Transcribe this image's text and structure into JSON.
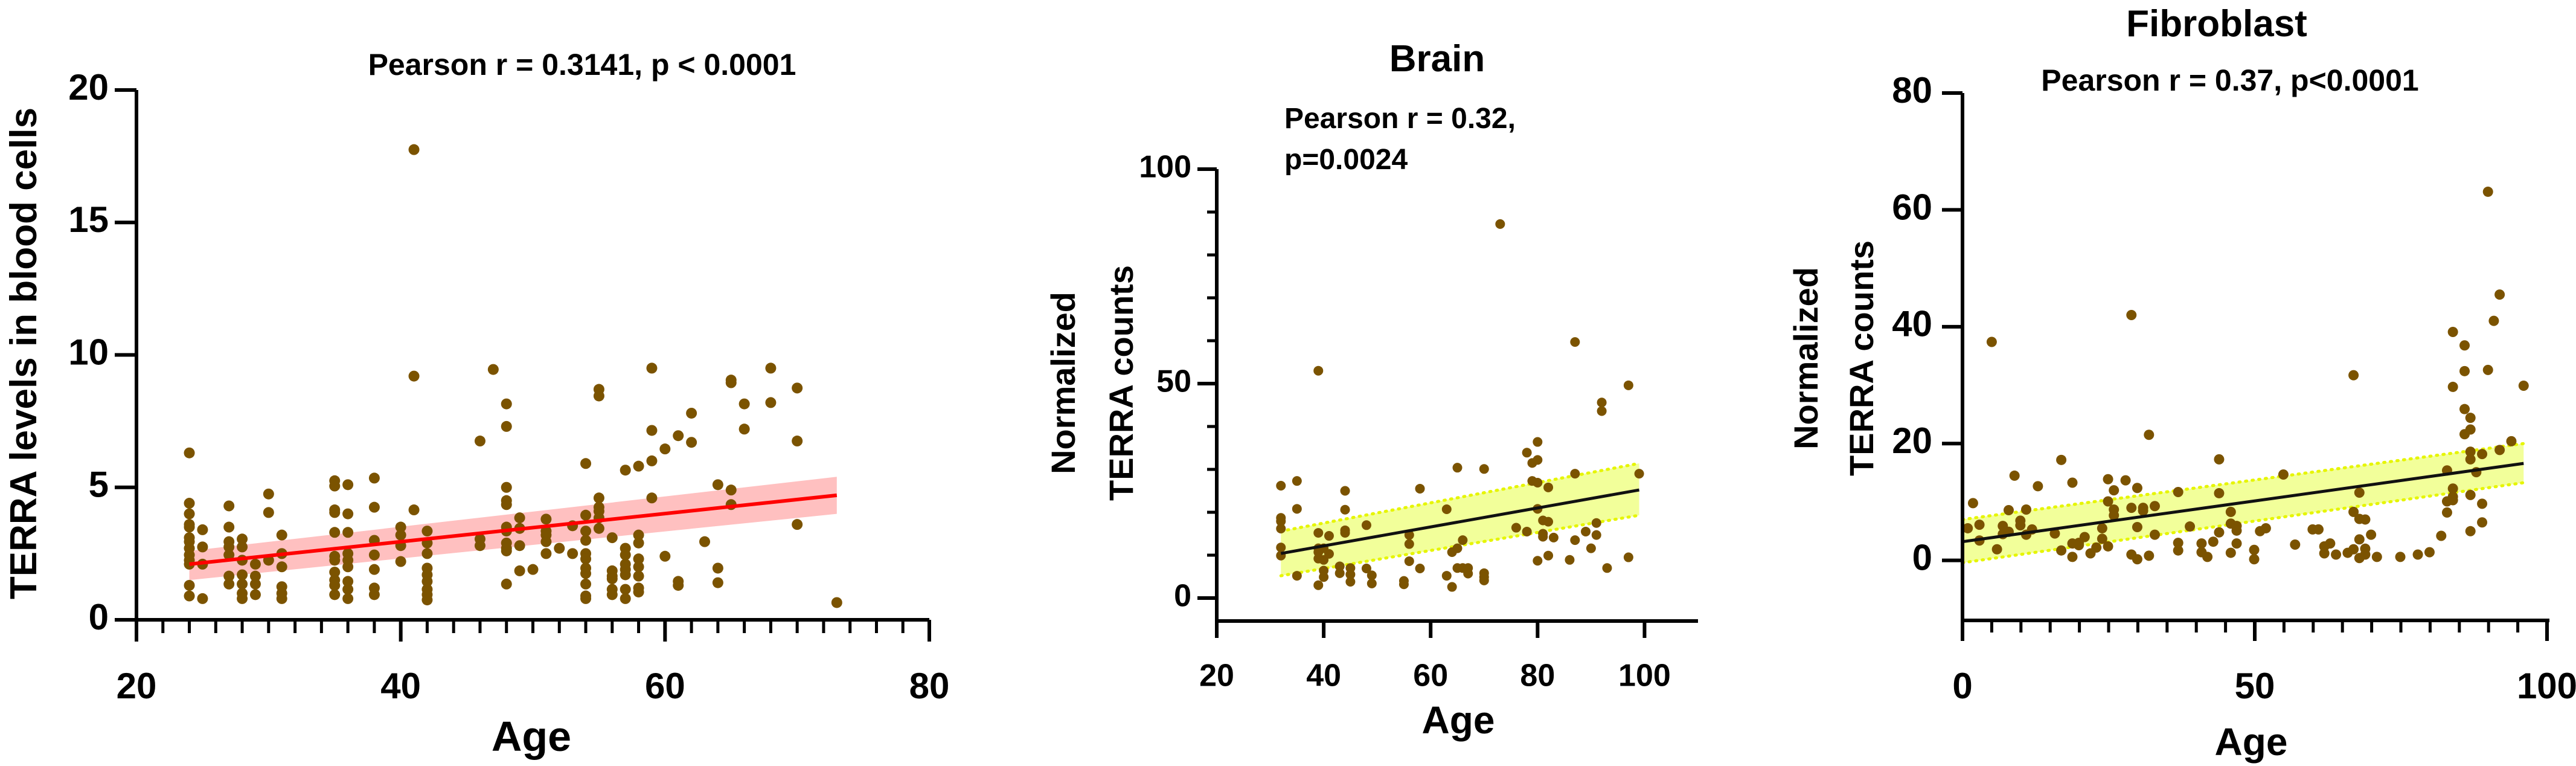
{
  "colors": {
    "point": "#7b5300",
    "axis": "#000000",
    "fit_red": "#ff0000",
    "ci_pink": "#ffc0c0",
    "fit_black": "#111111",
    "ci_yellow": "#f2ff9a",
    "ci_yellow_edge": "#e6f500"
  },
  "chart_data": [
    {
      "type": "scatter",
      "title": "",
      "annotation": [
        "Pearson r = 0.3141, p < 0.0001"
      ],
      "xlabel": "Age",
      "ylabel": [
        "TERRA levels in blood cells"
      ],
      "xlim": [
        20,
        80
      ],
      "ylim": [
        0,
        20
      ],
      "xticks": [
        20,
        40,
        60,
        80
      ],
      "yticks": [
        0,
        5,
        10,
        15,
        20
      ],
      "grid": false,
      "regression": {
        "x": [
          24,
          73
        ],
        "y": [
          2.1,
          4.7
        ],
        "ci_lower": [
          1.5,
          4.0
        ],
        "ci_upper": [
          2.6,
          5.4
        ]
      },
      "points": [
        {
          "x": 24,
          "y": [
            6.3,
            4.4,
            4.0,
            3.6,
            3.5,
            3.1,
            2.95,
            2.7,
            2.45,
            2.25,
            2.1,
            1.3,
            0.9
          ]
        },
        {
          "x": 25,
          "y": [
            3.4,
            2.75,
            2.1,
            0.8
          ]
        },
        {
          "x": 27,
          "y": [
            4.3,
            3.5,
            2.95,
            2.75,
            2.45,
            1.65,
            1.35
          ]
        },
        {
          "x": 28,
          "y": [
            3.05,
            2.75,
            2.25,
            1.7,
            1.35,
            1.0,
            0.8
          ]
        },
        {
          "x": 29,
          "y": [
            2.1,
            1.65,
            1.35,
            0.95
          ]
        },
        {
          "x": 30,
          "y": [
            4.75,
            4.05,
            2.25
          ]
        },
        {
          "x": 31,
          "y": [
            3.2,
            2.5,
            2.0,
            1.25,
            1.0,
            0.8
          ]
        },
        {
          "x": 35,
          "y": [
            5.25,
            5.05,
            4.15,
            4.05,
            3.3,
            2.4,
            2.25,
            1.8,
            1.5,
            1.3,
            0.95
          ]
        },
        {
          "x": 36,
          "y": [
            5.1,
            4.0,
            3.3,
            2.5,
            2.25,
            2.0,
            1.45,
            1.15,
            0.8
          ]
        },
        {
          "x": 38,
          "y": [
            5.35,
            4.25,
            3.0,
            2.45,
            1.9,
            1.2,
            0.95
          ]
        },
        {
          "x": 40,
          "y": [
            3.5,
            3.2,
            2.8,
            2.2
          ]
        },
        {
          "x": 41,
          "y": [
            17.75,
            9.2,
            4.15
          ]
        },
        {
          "x": 42,
          "y": [
            3.35,
            2.9,
            2.5,
            1.95,
            1.7,
            1.45,
            1.15,
            0.95,
            0.75
          ]
        },
        {
          "x": 46,
          "y": [
            6.75,
            3.05,
            2.8
          ]
        },
        {
          "x": 47,
          "y": [
            9.45
          ]
        },
        {
          "x": 48,
          "y": [
            8.15,
            7.3,
            5.0,
            4.5,
            4.35,
            3.5,
            3.35,
            2.9,
            2.7,
            2.6,
            1.35
          ]
        },
        {
          "x": 49,
          "y": [
            3.85,
            3.45,
            2.8,
            1.85
          ]
        },
        {
          "x": 50,
          "y": [
            1.9
          ]
        },
        {
          "x": 51,
          "y": [
            3.8,
            3.35,
            3.2,
            2.95,
            2.5
          ]
        },
        {
          "x": 52,
          "y": [
            2.7
          ]
        },
        {
          "x": 53,
          "y": [
            3.55,
            2.5
          ]
        },
        {
          "x": 54,
          "y": [
            5.9,
            3.95,
            3.35,
            3.0,
            2.5,
            2.3,
            1.95,
            1.75,
            1.35,
            0.9,
            0.8
          ]
        },
        {
          "x": 55,
          "y": [
            8.7,
            8.45,
            4.6,
            4.25,
            4.1,
            3.85,
            3.45
          ]
        },
        {
          "x": 56,
          "y": [
            3.1,
            1.85,
            1.65,
            1.55,
            1.15,
            0.95
          ]
        },
        {
          "x": 57,
          "y": [
            5.65,
            2.7,
            2.45,
            2.1,
            1.9,
            1.7,
            1.15,
            0.8
          ]
        },
        {
          "x": 58,
          "y": [
            5.8,
            3.2,
            2.9,
            2.3,
            2.0,
            1.65,
            1.2,
            1.05
          ]
        },
        {
          "x": 59,
          "y": [
            9.5,
            7.15,
            6.0,
            4.6
          ]
        },
        {
          "x": 60,
          "y": [
            6.45,
            2.4
          ]
        },
        {
          "x": 61,
          "y": [
            6.95,
            1.45,
            1.3
          ]
        },
        {
          "x": 62,
          "y": [
            7.8,
            6.7
          ]
        },
        {
          "x": 63,
          "y": [
            2.95
          ]
        },
        {
          "x": 64,
          "y": [
            5.1,
            1.95,
            1.4
          ]
        },
        {
          "x": 65,
          "y": [
            9.05,
            8.95,
            4.9,
            4.35
          ]
        },
        {
          "x": 66,
          "y": [
            8.15,
            7.2
          ]
        },
        {
          "x": 68,
          "y": [
            9.5,
            8.2
          ]
        },
        {
          "x": 70,
          "y": [
            8.75,
            6.75,
            3.6
          ]
        },
        {
          "x": 73,
          "y": [
            0.65
          ]
        }
      ]
    },
    {
      "type": "scatter",
      "title": "Brain",
      "annotation": [
        "Pearson r = 0.32,",
        "p=0.0024"
      ],
      "xlabel": "Age",
      "ylabel": [
        "Normalized",
        "TERRA counts"
      ],
      "xlim": [
        20,
        110
      ],
      "ylim": [
        -5,
        100
      ],
      "xticks": [
        20,
        40,
        60,
        80,
        100
      ],
      "yticks": [
        0,
        50,
        100
      ],
      "grid": false,
      "regression": {
        "x": [
          32,
          99
        ],
        "y": [
          10.4,
          25.2
        ],
        "ci_lower": [
          5.2,
          19.3
        ],
        "ci_upper": [
          15.6,
          31.4
        ]
      },
      "points": [
        {
          "x": 32,
          "y": [
            26.2,
            18.7,
            17.9,
            16.2,
            11.8,
            9.9
          ]
        },
        {
          "x": 35,
          "y": [
            27.3,
            20.8,
            5.2
          ]
        },
        {
          "x": 39,
          "y": [
            53,
            15.2,
            11.6,
            10.7,
            9.2,
            3.0
          ]
        },
        {
          "x": 40,
          "y": [
            11.6,
            8.9,
            6.4,
            4.9
          ]
        },
        {
          "x": 41,
          "y": [
            14.5,
            10.3
          ]
        },
        {
          "x": 43,
          "y": [
            7.4,
            5.8
          ]
        },
        {
          "x": 44,
          "y": [
            25,
            20.6,
            15.8,
            15.2
          ]
        },
        {
          "x": 45,
          "y": [
            7.0,
            5.5,
            3.8
          ]
        },
        {
          "x": 48,
          "y": [
            17,
            6.9
          ]
        },
        {
          "x": 49,
          "y": [
            5.3,
            3.4
          ]
        },
        {
          "x": 55,
          "y": [
            4.0,
            3.2
          ]
        },
        {
          "x": 56,
          "y": [
            14.7,
            12.6,
            8.6
          ]
        },
        {
          "x": 58,
          "y": [
            25.5,
            6.9
          ]
        },
        {
          "x": 63,
          "y": [
            20.7,
            5.2
          ]
        },
        {
          "x": 64,
          "y": [
            10.7,
            2.6
          ]
        },
        {
          "x": 65,
          "y": [
            30.4,
            11.6,
            7.0
          ]
        },
        {
          "x": 66,
          "y": [
            13.5,
            7.0
          ]
        },
        {
          "x": 67,
          "y": [
            7.0,
            5.7
          ]
        },
        {
          "x": 70,
          "y": [
            30.1,
            5.8,
            4.9,
            4.1
          ]
        },
        {
          "x": 73,
          "y": [
            87.2
          ]
        },
        {
          "x": 76,
          "y": [
            16.4
          ]
        },
        {
          "x": 78,
          "y": [
            33.9,
            15.5
          ]
        },
        {
          "x": 79,
          "y": [
            31.5,
            27.3
          ]
        },
        {
          "x": 80,
          "y": [
            36.4,
            32.2,
            26.9,
            20.8,
            8.7
          ]
        },
        {
          "x": 81,
          "y": [
            18.1,
            15,
            14.3
          ]
        },
        {
          "x": 82,
          "y": [
            25.8,
            17.8,
            9.9
          ]
        },
        {
          "x": 83,
          "y": [
            14.1
          ]
        },
        {
          "x": 86,
          "y": [
            8.9
          ]
        },
        {
          "x": 87,
          "y": [
            59.7,
            29,
            13.5
          ]
        },
        {
          "x": 89,
          "y": [
            15.5
          ]
        },
        {
          "x": 90,
          "y": [
            11.6
          ]
        },
        {
          "x": 91,
          "y": [
            17.5,
            14.7
          ]
        },
        {
          "x": 92,
          "y": [
            45.6,
            43.6
          ]
        },
        {
          "x": 93,
          "y": [
            7.0
          ]
        },
        {
          "x": 97,
          "y": [
            49.6,
            9.5
          ]
        },
        {
          "x": 99,
          "y": [
            29
          ]
        }
      ]
    },
    {
      "type": "scatter",
      "title": "Fibroblast",
      "annotation": [
        "Pearson r = 0.37, p<0.0001"
      ],
      "xlabel": "Age",
      "ylabel": [
        "Normalized",
        "TERRA counts"
      ],
      "xlim": [
        0,
        100
      ],
      "ylim": [
        -5,
        80
      ],
      "xticks": [
        0,
        50,
        100
      ],
      "yticks": [
        0,
        20,
        40,
        60,
        80
      ],
      "grid": false,
      "regression": {
        "x": [
          0,
          96
        ],
        "y": [
          3.2,
          16.6
        ],
        "ci_lower": [
          -0.4,
          13.3
        ],
        "ci_upper": [
          7.0,
          20.0
        ]
      },
      "points": [
        {
          "x": 0.9,
          "y": [
            5.5
          ]
        },
        {
          "x": 1.8,
          "y": [
            9.8
          ]
        },
        {
          "x": 2.9,
          "y": [
            6.1,
            3.4
          ]
        },
        {
          "x": 5,
          "y": [
            37.4
          ]
        },
        {
          "x": 5.9,
          "y": [
            1.9
          ]
        },
        {
          "x": 6.9,
          "y": [
            5.9,
            4.5
          ]
        },
        {
          "x": 7.9,
          "y": [
            8.6,
            4.9
          ]
        },
        {
          "x": 8.9,
          "y": [
            14.5
          ]
        },
        {
          "x": 9.9,
          "y": [
            6.8,
            6.0
          ]
        },
        {
          "x": 10.9,
          "y": [
            8.7,
            4.4
          ]
        },
        {
          "x": 11.9,
          "y": [
            5.3
          ]
        },
        {
          "x": 12.9,
          "y": [
            12.7
          ]
        },
        {
          "x": 15.8,
          "y": [
            4.6
          ]
        },
        {
          "x": 16.9,
          "y": [
            17.2,
            1.7
          ]
        },
        {
          "x": 18.8,
          "y": [
            13.3,
            2.9,
            0.6
          ]
        },
        {
          "x": 19.9,
          "y": [
            3.0,
            2.6
          ]
        },
        {
          "x": 20.9,
          "y": [
            4.0
          ]
        },
        {
          "x": 21.9,
          "y": [
            1.2
          ]
        },
        {
          "x": 22.9,
          "y": [
            2.2
          ]
        },
        {
          "x": 23.9,
          "y": [
            5.5,
            3.7
          ]
        },
        {
          "x": 24.9,
          "y": [
            13.9,
            10.1,
            2.4
          ]
        },
        {
          "x": 25.9,
          "y": [
            12.0,
            8.7,
            7.7
          ]
        },
        {
          "x": 27.9,
          "y": [
            13.7
          ]
        },
        {
          "x": 28.9,
          "y": [
            42,
            9.0,
            1.0
          ]
        },
        {
          "x": 29.9,
          "y": [
            12.4,
            5.7,
            0.2
          ]
        },
        {
          "x": 30.9,
          "y": [
            9.0,
            8.5
          ]
        },
        {
          "x": 31.9,
          "y": [
            21.5,
            0.8
          ]
        },
        {
          "x": 32.9,
          "y": [
            9.3,
            4.4
          ]
        },
        {
          "x": 36.9,
          "y": [
            11.7,
            3.0,
            1.7
          ]
        },
        {
          "x": 38.9,
          "y": [
            5.8
          ]
        },
        {
          "x": 40.9,
          "y": [
            2.9,
            1.4
          ]
        },
        {
          "x": 41.9,
          "y": [
            0.6
          ]
        },
        {
          "x": 42.9,
          "y": [
            3.2
          ]
        },
        {
          "x": 43.9,
          "y": [
            17.3,
            11.5,
            4.8
          ]
        },
        {
          "x": 45.9,
          "y": [
            8.3,
            6.3,
            1.3
          ]
        },
        {
          "x": 46.9,
          "y": [
            5.9,
            5.1,
            2.9
          ]
        },
        {
          "x": 49.9,
          "y": [
            1.8,
            0.2
          ]
        },
        {
          "x": 50.9,
          "y": [
            5.0
          ]
        },
        {
          "x": 51.9,
          "y": [
            5.5
          ]
        },
        {
          "x": 54.9,
          "y": [
            14.7
          ]
        },
        {
          "x": 56.9,
          "y": [
            2.7
          ]
        },
        {
          "x": 59.9,
          "y": [
            5.3
          ]
        },
        {
          "x": 60.9,
          "y": [
            5.3
          ]
        },
        {
          "x": 61.9,
          "y": [
            2.4,
            1.2
          ]
        },
        {
          "x": 62.9,
          "y": [
            2.9
          ]
        },
        {
          "x": 63.9,
          "y": [
            1.0
          ]
        },
        {
          "x": 65.9,
          "y": [
            1.3
          ]
        },
        {
          "x": 66.9,
          "y": [
            31.7,
            8.3,
            1.9
          ]
        },
        {
          "x": 67.9,
          "y": [
            11.6,
            7.1,
            3.6,
            0.4
          ]
        },
        {
          "x": 68.9,
          "y": [
            7.0,
            2.0,
            1.0
          ]
        },
        {
          "x": 69.9,
          "y": [
            4.4
          ]
        },
        {
          "x": 70.9,
          "y": [
            0.6
          ]
        },
        {
          "x": 74.9,
          "y": [
            0.6
          ]
        },
        {
          "x": 77.9,
          "y": [
            1.0
          ]
        },
        {
          "x": 79.9,
          "y": [
            1.4
          ]
        },
        {
          "x": 81.9,
          "y": [
            4.2
          ]
        },
        {
          "x": 82.9,
          "y": [
            15.4,
            10.1,
            8.2
          ]
        },
        {
          "x": 83.9,
          "y": [
            39.1,
            29.7,
            12.3,
            10.9,
            10.3
          ]
        },
        {
          "x": 85.9,
          "y": [
            36.8,
            32.4,
            25.9,
            21.6
          ]
        },
        {
          "x": 86.9,
          "y": [
            24.4,
            22.4,
            18.6,
            17.3,
            11.2,
            5.0
          ]
        },
        {
          "x": 87.9,
          "y": [
            15.1
          ]
        },
        {
          "x": 88.9,
          "y": [
            18.2,
            9.7,
            6.5
          ]
        },
        {
          "x": 89.9,
          "y": [
            63.1,
            32.6
          ]
        },
        {
          "x": 90.9,
          "y": [
            41
          ]
        },
        {
          "x": 91.9,
          "y": [
            45.5,
            18.9
          ]
        },
        {
          "x": 93.9,
          "y": [
            20.4
          ]
        },
        {
          "x": 96,
          "y": [
            29.9
          ]
        }
      ]
    }
  ]
}
